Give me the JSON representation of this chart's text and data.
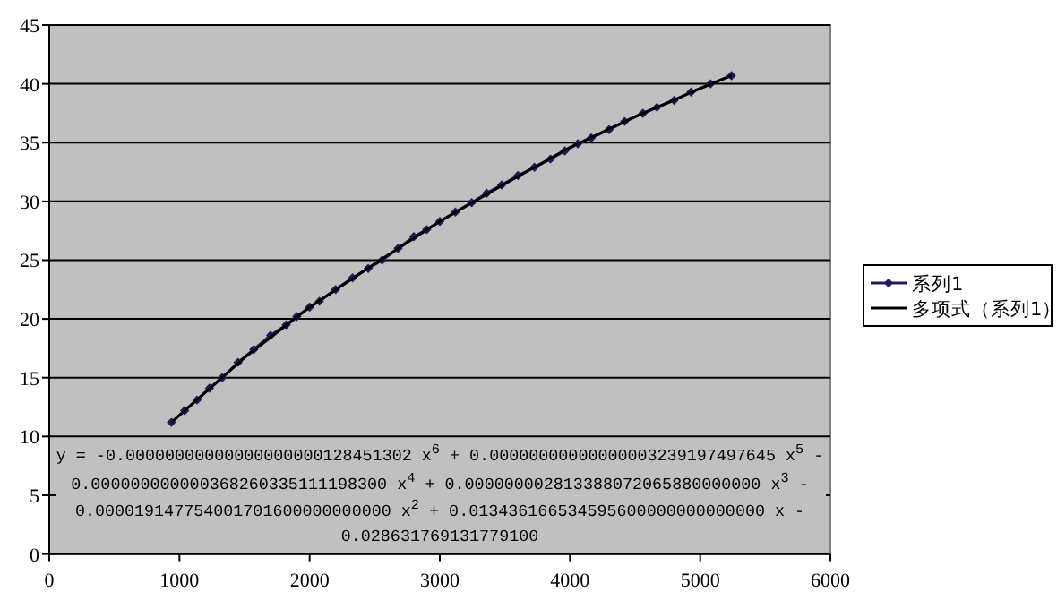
{
  "chart_data": {
    "type": "line",
    "xlim": [
      0,
      6000
    ],
    "xticks": [
      0,
      1000,
      2000,
      3000,
      4000,
      5000,
      6000
    ],
    "ylim": [
      0,
      45
    ],
    "yticks": [
      0,
      5,
      10,
      15,
      20,
      25,
      30,
      35,
      40,
      45
    ],
    "grid": "y",
    "legend": "right",
    "marker": "diamond",
    "series": [
      {
        "name": "系列1",
        "color": "#1c1c5c",
        "x": [
          938,
          1040,
          1135,
          1230,
          1328,
          1450,
          1571,
          1700,
          1820,
          1901,
          2000,
          2075,
          2200,
          2330,
          2450,
          2557,
          2680,
          2800,
          2900,
          3000,
          3120,
          3245,
          3360,
          3475,
          3600,
          3727,
          3850,
          3960,
          4060,
          4163,
          4300,
          4420,
          4560,
          4668,
          4800,
          4930,
          5080,
          5240
        ],
        "values": [
          11.2,
          12.2,
          13.1,
          14.1,
          15.0,
          16.3,
          17.4,
          18.6,
          19.5,
          20.2,
          21.0,
          21.5,
          22.5,
          23.5,
          24.3,
          25.0,
          26.0,
          27.0,
          27.6,
          28.3,
          29.1,
          29.9,
          30.7,
          31.4,
          32.2,
          32.9,
          33.6,
          34.3,
          34.9,
          35.4,
          36.1,
          36.8,
          37.5,
          38.0,
          38.6,
          39.3,
          40.0,
          40.7
        ]
      },
      {
        "name": "多项式（系列1）",
        "color": "#000000",
        "marker": "none",
        "x": [
          938,
          1500,
          2000,
          2500,
          3000,
          3500,
          4000,
          4500,
          5000,
          5240
        ],
        "values": [
          11.2,
          16.7,
          21.0,
          24.7,
          28.3,
          31.5,
          34.6,
          37.2,
          39.6,
          40.7
        ]
      }
    ],
    "annotations": [
      "y = -0.00000000000000000000128451302 x$^{6}$ + 0.00000000000000003239197497645 x$^{5}$ - 0.000000000000368260335111198300 x$^{4}$ + 0.000000002813388072065880000000 x$^{3}$ - 0.000019147754001701600000000000 x$^{2}$ + 0.013436166534595600000000000000 x - 0.028631769131779100"
    ]
  }
}
